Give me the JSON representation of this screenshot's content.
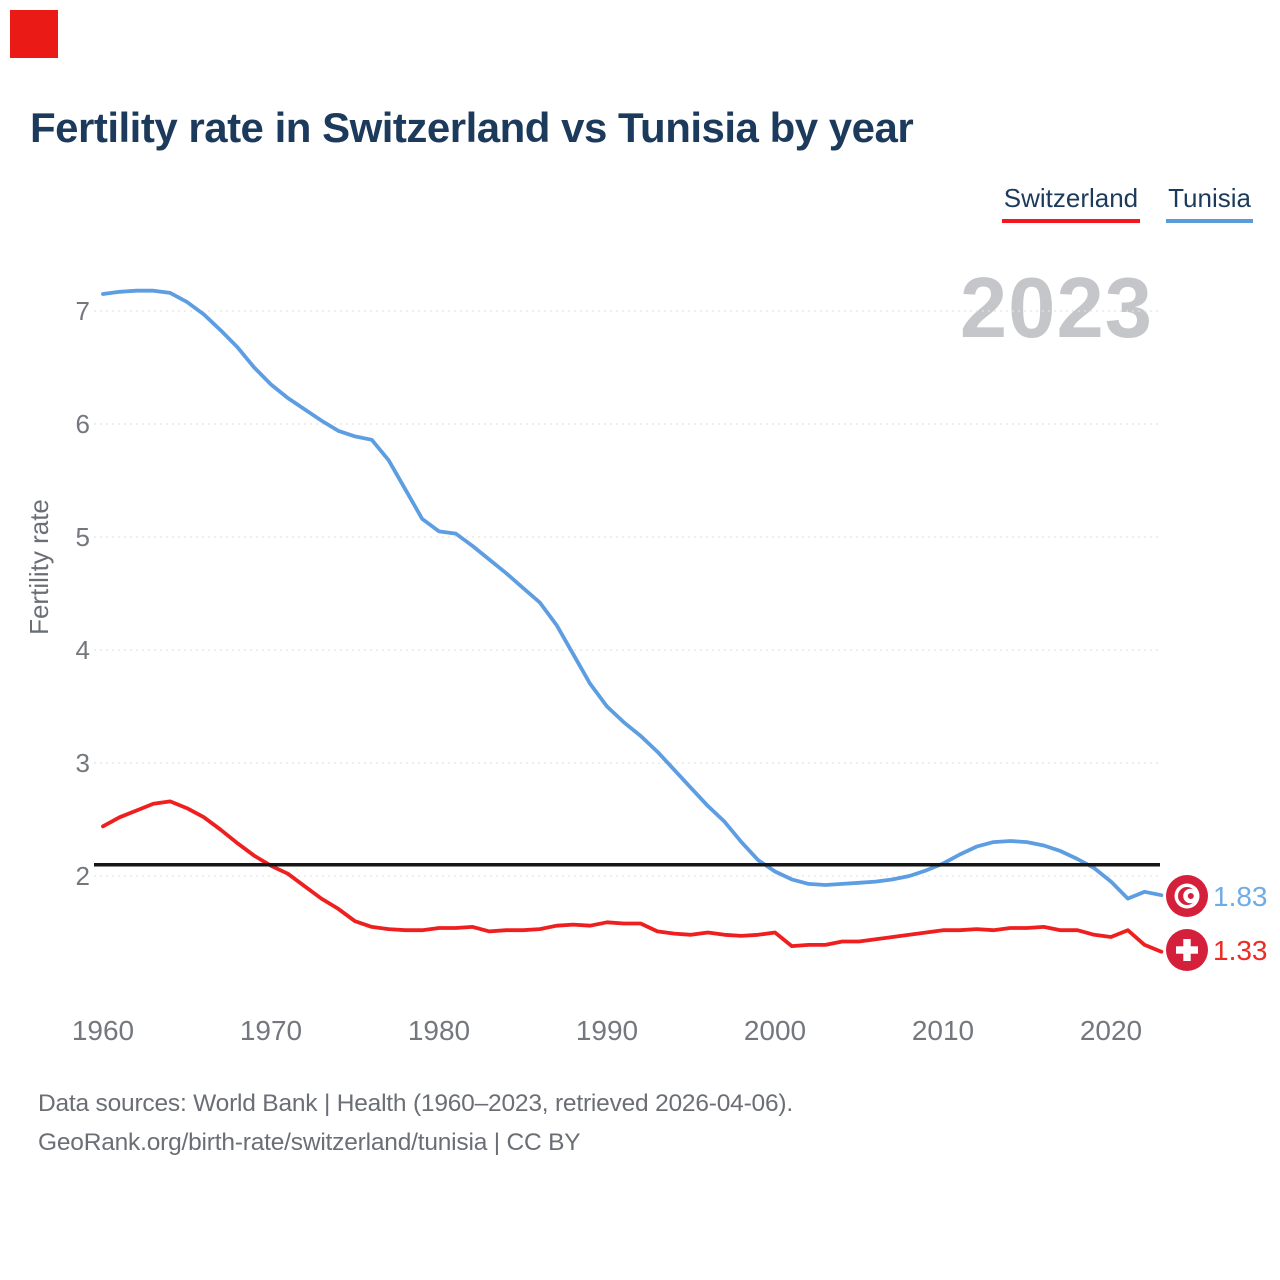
{
  "page": {
    "title": "Fertility rate in Switzerland vs Tunisia by year",
    "year_watermark": "2023",
    "red_square_marker": true
  },
  "legend": [
    {
      "label": "Switzerland",
      "underline_color": "#f51720"
    },
    {
      "label": "Tunisia",
      "underline_color": "#5b9bd8"
    }
  ],
  "chart_data": {
    "type": "line",
    "title": "Fertility rate in Switzerland vs Tunisia by year",
    "ylabel": "Fertility rate",
    "grid": "horizontal-dashed",
    "legend_position": "top-right",
    "ylim": [
      1.1,
      7.4
    ],
    "y_ticks": [
      2,
      3,
      4,
      5,
      6,
      7
    ],
    "x_ticks": [
      1960,
      1970,
      1980,
      1990,
      2000,
      2010,
      2020
    ],
    "years": [
      1960,
      1961,
      1962,
      1963,
      1964,
      1965,
      1966,
      1967,
      1968,
      1969,
      1970,
      1971,
      1972,
      1973,
      1974,
      1975,
      1976,
      1977,
      1978,
      1979,
      1980,
      1981,
      1982,
      1983,
      1984,
      1985,
      1986,
      1987,
      1988,
      1989,
      1990,
      1991,
      1992,
      1993,
      1994,
      1995,
      1996,
      1997,
      1998,
      1999,
      2000,
      2001,
      2002,
      2003,
      2004,
      2005,
      2006,
      2007,
      2008,
      2009,
      2010,
      2011,
      2012,
      2013,
      2014,
      2015,
      2016,
      2017,
      2018,
      2019,
      2020,
      2021,
      2022,
      2023
    ],
    "series": [
      {
        "name": "Tunisia",
        "color": "#5d9de2",
        "end_value_label": "1.83",
        "values": [
          7.15,
          7.17,
          7.18,
          7.18,
          7.16,
          7.08,
          6.97,
          6.83,
          6.68,
          6.5,
          6.35,
          6.23,
          6.13,
          6.03,
          5.94,
          5.89,
          5.86,
          5.68,
          5.42,
          5.16,
          5.05,
          5.03,
          4.92,
          4.8,
          4.68,
          4.55,
          4.42,
          4.22,
          3.96,
          3.7,
          3.5,
          3.36,
          3.24,
          3.1,
          2.94,
          2.78,
          2.62,
          2.48,
          2.3,
          2.14,
          2.04,
          1.97,
          1.93,
          1.92,
          1.93,
          1.94,
          1.95,
          1.97,
          2.0,
          2.05,
          2.11,
          2.19,
          2.26,
          2.3,
          2.31,
          2.3,
          2.27,
          2.22,
          2.15,
          2.07,
          1.95,
          1.8,
          1.86,
          1.83
        ]
      },
      {
        "name": "Switzerland",
        "color": "#ef1f1f",
        "end_value_label": "1.33",
        "values": [
          2.44,
          2.52,
          2.58,
          2.64,
          2.66,
          2.6,
          2.52,
          2.41,
          2.29,
          2.18,
          2.09,
          2.02,
          1.91,
          1.8,
          1.71,
          1.6,
          1.55,
          1.53,
          1.52,
          1.52,
          1.54,
          1.54,
          1.55,
          1.51,
          1.52,
          1.52,
          1.53,
          1.56,
          1.57,
          1.56,
          1.59,
          1.58,
          1.58,
          1.51,
          1.49,
          1.48,
          1.5,
          1.48,
          1.47,
          1.48,
          1.5,
          1.38,
          1.39,
          1.39,
          1.42,
          1.42,
          1.44,
          1.46,
          1.48,
          1.5,
          1.52,
          1.52,
          1.53,
          1.52,
          1.54,
          1.54,
          1.55,
          1.52,
          1.52,
          1.48,
          1.46,
          1.52,
          1.39,
          1.33
        ]
      }
    ],
    "reference_line": {
      "value": 2.1,
      "color": "#161616"
    }
  },
  "end_labels": [
    {
      "value": "1.83",
      "icon": "tunisia-flag",
      "color": "#6fabe5"
    },
    {
      "value": "1.33",
      "icon": "switzerland-flag",
      "color": "#ee2a23"
    }
  ],
  "icon_color": "#d5203b",
  "footer": {
    "line1": "Data sources: World Bank | Health (1960–2023, retrieved 2026-04-06).",
    "line2": "GeoRank.org/birth-rate/switzerland/tunisia | CC BY"
  }
}
